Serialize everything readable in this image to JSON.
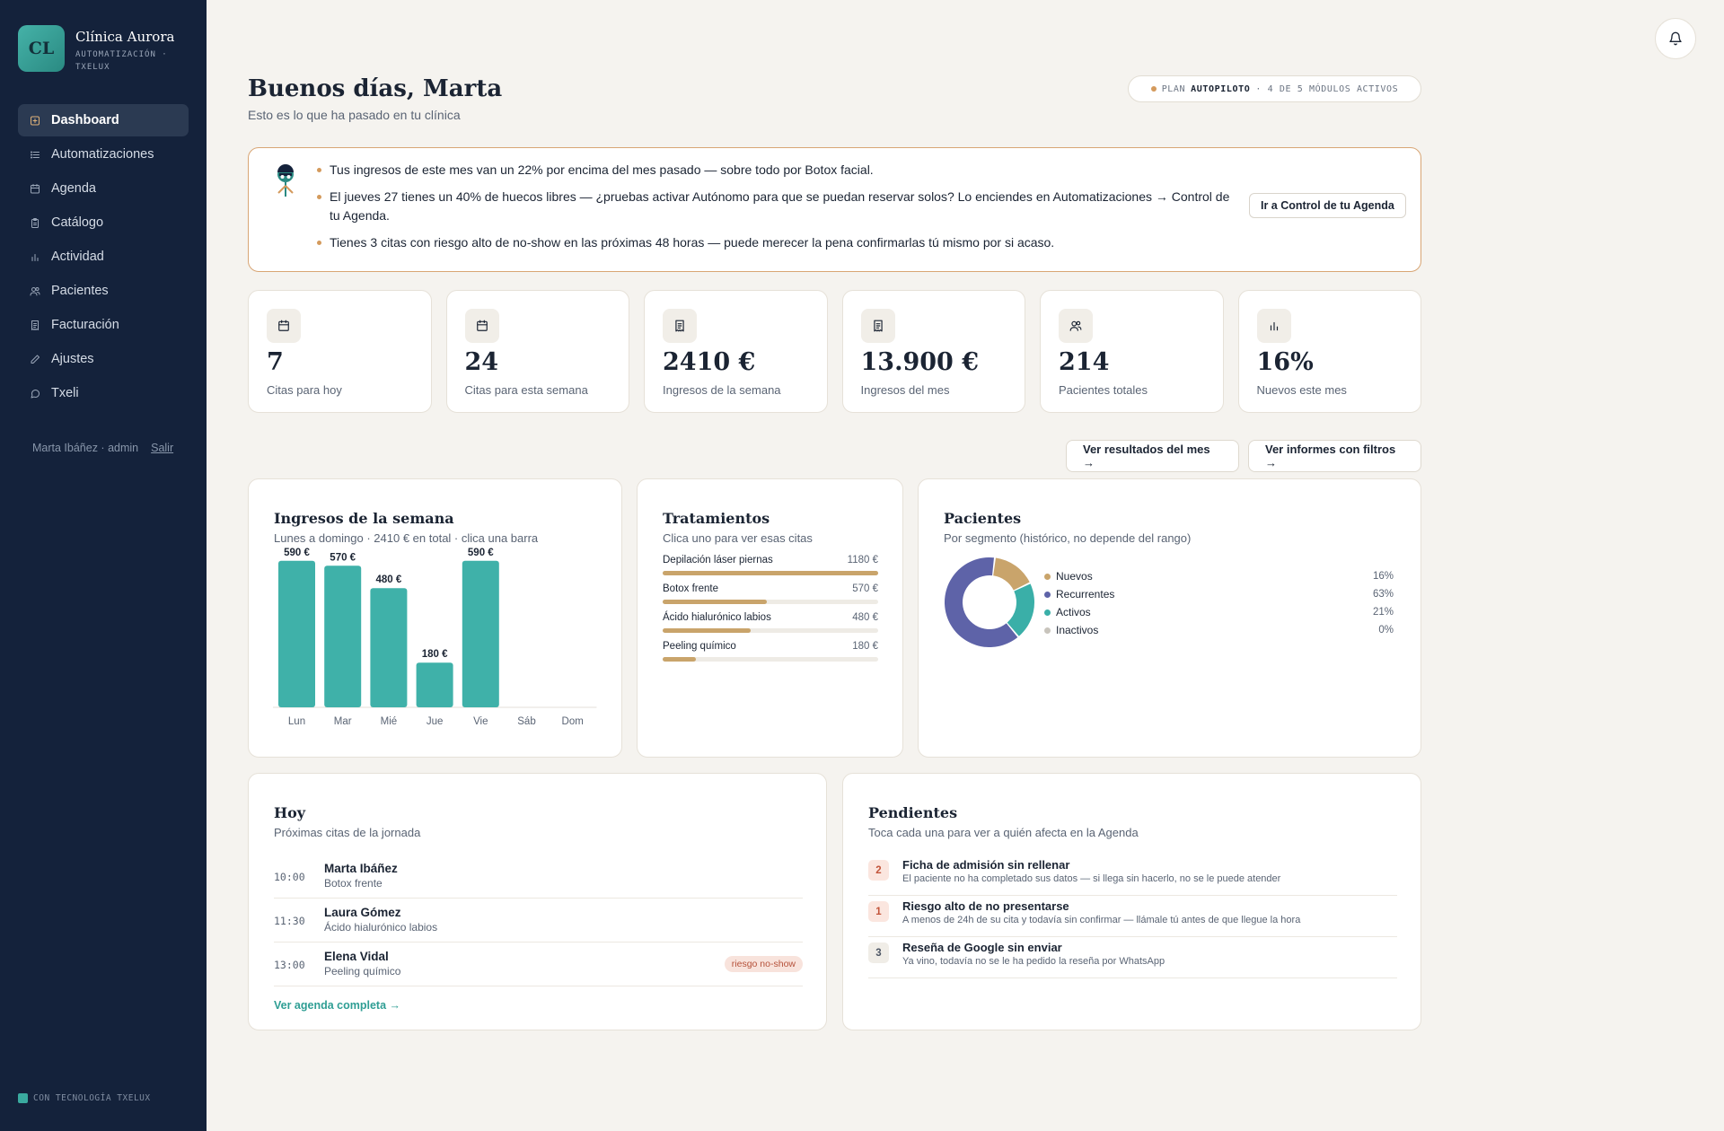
{
  "brand": {
    "initials": "CL",
    "name": "Clínica Aurora",
    "subtitle": "AUTOMATIZACIÓN · TXELUX"
  },
  "nav": [
    {
      "label": "Dashboard",
      "icon": "dashboard-icon",
      "active": true
    },
    {
      "label": "Automatizaciones",
      "icon": "list-icon"
    },
    {
      "label": "Agenda",
      "icon": "calendar-icon"
    },
    {
      "label": "Catálogo",
      "icon": "clipboard-icon"
    },
    {
      "label": "Actividad",
      "icon": "bar-chart-icon"
    },
    {
      "label": "Pacientes",
      "icon": "users-icon"
    },
    {
      "label": "Facturación",
      "icon": "receipt-icon"
    },
    {
      "label": "Ajustes",
      "icon": "pencil-icon"
    },
    {
      "label": "Txeli",
      "icon": "chat-icon"
    }
  ],
  "user": {
    "text": "Marta Ibáñez · admin",
    "logout": "Salir"
  },
  "powered": "CON TECNOLOGÍA TXELUX",
  "header": {
    "greeting": "Buenos días, Marta",
    "subtitle": "Esto es lo que ha pasado en tu clínica",
    "plan_prefix": "PLAN",
    "plan_name": "AUTOPILOTO",
    "plan_suffix": "· 4 DE 5 MÓDULOS ACTIVOS"
  },
  "insights": {
    "items": [
      "Tus ingresos de este mes van un 22% por encima del mes pasado — sobre todo por Botox facial.",
      "El jueves 27 tienes un 40% de huecos libres — ¿pruebas activar Autónomo para que se puedan reservar solos? Lo enciendes en Automatizaciones → Control de tu Agenda.",
      "Tienes 3 citas con riesgo alto de no-show en las próximas 48 horas — puede merecer la pena confirmarlas tú mismo por si acaso."
    ],
    "cta": "Ir a Control de tu Agenda"
  },
  "stats": [
    {
      "value": "7",
      "label": "Citas para hoy",
      "icon": "calendar-icon"
    },
    {
      "value": "24",
      "label": "Citas para esta semana",
      "icon": "calendar-icon"
    },
    {
      "value": "2410 €",
      "label": "Ingresos de la semana",
      "icon": "receipt-icon"
    },
    {
      "value": "13.900 €",
      "label": "Ingresos del mes",
      "icon": "receipt-icon"
    },
    {
      "value": "214",
      "label": "Pacientes totales",
      "icon": "users-icon"
    },
    {
      "value": "16%",
      "label": "Nuevos este mes",
      "icon": "bar-chart-icon"
    }
  ],
  "actions": {
    "month_results": "Ver resultados del mes →",
    "filtered_reports": "Ver informes con filtros →"
  },
  "income_card": {
    "title": "Ingresos de la semana",
    "subtitle": "Lunes a domingo · 2410 € en total · clica una barra"
  },
  "treatments": {
    "title": "Tratamientos",
    "subtitle": "Clica uno para ver esas citas",
    "items": [
      {
        "name": "Depilación láser piernas",
        "value": "1180 €",
        "amount": 1180
      },
      {
        "name": "Botox frente",
        "value": "570 €",
        "amount": 570
      },
      {
        "name": "Ácido hialurónico labios",
        "value": "480 €",
        "amount": 480
      },
      {
        "name": "Peeling químico",
        "value": "180 €",
        "amount": 180
      }
    ]
  },
  "patients": {
    "title": "Pacientes",
    "subtitle": "Por segmento (histórico, no depende del rango)"
  },
  "today": {
    "title": "Hoy",
    "subtitle": "Próximas citas de la jornada",
    "appointments": [
      {
        "time": "10:00",
        "name": "Marta Ibáñez",
        "treatment": "Botox frente",
        "badge": ""
      },
      {
        "time": "11:30",
        "name": "Laura Gómez",
        "treatment": "Ácido hialurónico labios",
        "badge": ""
      },
      {
        "time": "13:00",
        "name": "Elena Vidal",
        "treatment": "Peeling químico",
        "badge": "riesgo no-show"
      }
    ],
    "link": "Ver agenda completa →"
  },
  "pending": {
    "title": "Pendientes",
    "subtitle": "Toca cada una para ver a quién afecta en la Agenda",
    "items": [
      {
        "count": "2",
        "title": "Ficha de admisión sin rellenar",
        "desc": "El paciente no ha completado sus datos — si llega sin hacerlo, no se le puede atender",
        "tone": "warn"
      },
      {
        "count": "1",
        "title": "Riesgo alto de no presentarse",
        "desc": "A menos de 24h de su cita y todavía sin confirmar — llámale tú antes de que llegue la hora",
        "tone": "warn"
      },
      {
        "count": "3",
        "title": "Reseña de Google sin enviar",
        "desc": "Ya vino, todavía no se le ha pedido la reseña por WhatsApp",
        "tone": "neutral"
      }
    ]
  },
  "colors": {
    "teal": "#3aaf a8",
    "amber": "#c9a46b",
    "indigo": "#5e63a8",
    "gray": "#c8c4bc"
  },
  "chart_data": [
    {
      "type": "bar",
      "title": "Ingresos de la semana",
      "categories": [
        "Lun",
        "Mar",
        "Mié",
        "Jue",
        "Vie",
        "Sáb",
        "Dom"
      ],
      "values": [
        590,
        570,
        480,
        180,
        590,
        0,
        0
      ],
      "value_labels": [
        "590 €",
        "570 €",
        "480 €",
        "180 €",
        "590 €",
        "",
        ""
      ],
      "ylim": [
        0,
        600
      ],
      "grid": false
    },
    {
      "type": "pie",
      "title": "Pacientes",
      "categories": [
        "Nuevos",
        "Recurrentes",
        "Activos",
        "Inactivos"
      ],
      "values": [
        16,
        63,
        21,
        0
      ],
      "labels": [
        "16%",
        "63%",
        "21%",
        "0%"
      ],
      "colors": [
        "#c9a46b",
        "#5e63a8",
        "#3aafa8",
        "#c8c4bc"
      ],
      "legend": "right"
    }
  ]
}
